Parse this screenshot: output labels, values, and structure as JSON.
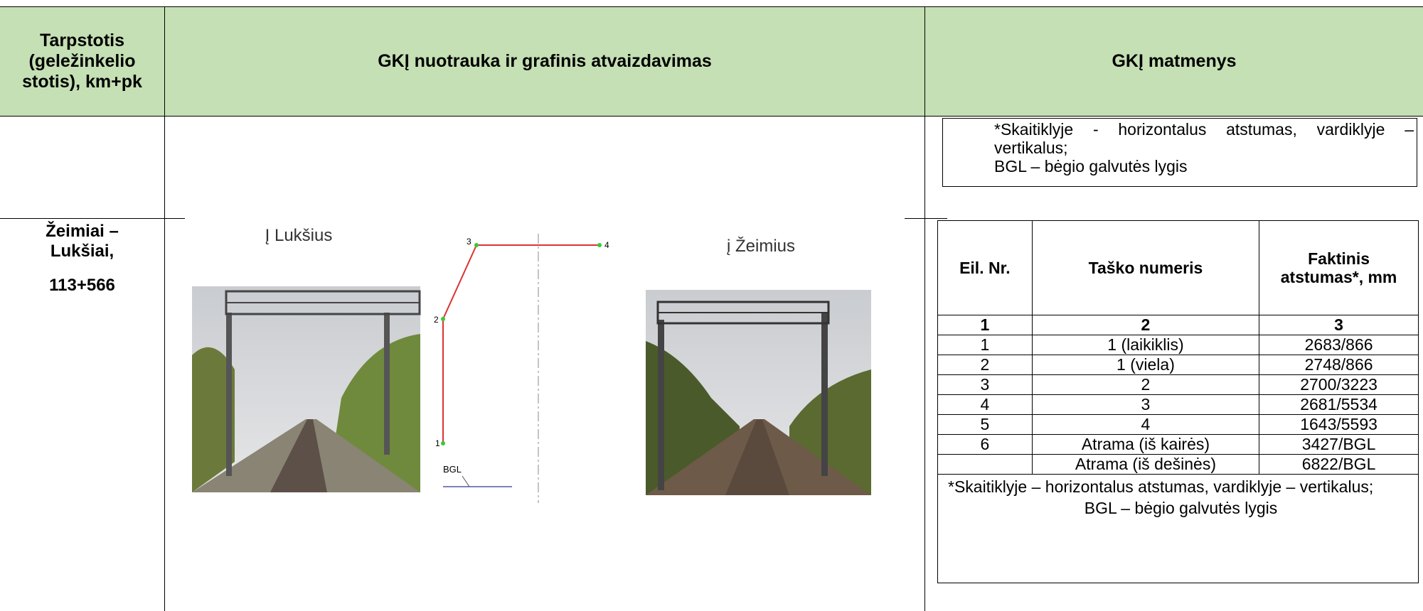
{
  "header": {
    "station": "Tarpstotis (geležinkelio stotis), km+pk",
    "photo": "GKĮ nuotrauka ir grafinis atvaizdavimas",
    "dimensions": "GKĮ matmenys"
  },
  "note_top": {
    "line1": "*Skaitiklyje - horizontalus atstumas, vardiklyje – vertikalus;",
    "line2": "BGL – bėgio galvutės lygis"
  },
  "station": {
    "name": "Žeimiai – Lukšiai,",
    "km": "113+566"
  },
  "photos": {
    "left_caption": "Į Lukšius",
    "right_caption": "į Žeimius"
  },
  "diagram": {
    "points": [
      "1",
      "2",
      "3",
      "4"
    ],
    "bgl": "BGL"
  },
  "table": {
    "header": [
      "Eil. Nr.",
      "Taško numeris",
      "Faktinis atstumas*, mm"
    ],
    "numbering": [
      "1",
      "2",
      "3"
    ],
    "rows": [
      [
        "1",
        "1 (laikiklis)",
        "2683/866"
      ],
      [
        "2",
        "1 (viela)",
        "2748/866"
      ],
      [
        "3",
        "2",
        "2700/3223"
      ],
      [
        "4",
        "3",
        "2681/5534"
      ],
      [
        "5",
        "4",
        "1643/5593"
      ],
      [
        "6",
        "Atrama (iš kairės)",
        "3427/BGL"
      ],
      [
        null,
        "Atrama (iš dešinės)",
        "6822/BGL"
      ]
    ],
    "note_line1": "*Skaitiklyje – horizontalus atstumas, vardiklyje – vertikalus;",
    "note_line2": "BGL – bėgio galvutės lygis"
  }
}
